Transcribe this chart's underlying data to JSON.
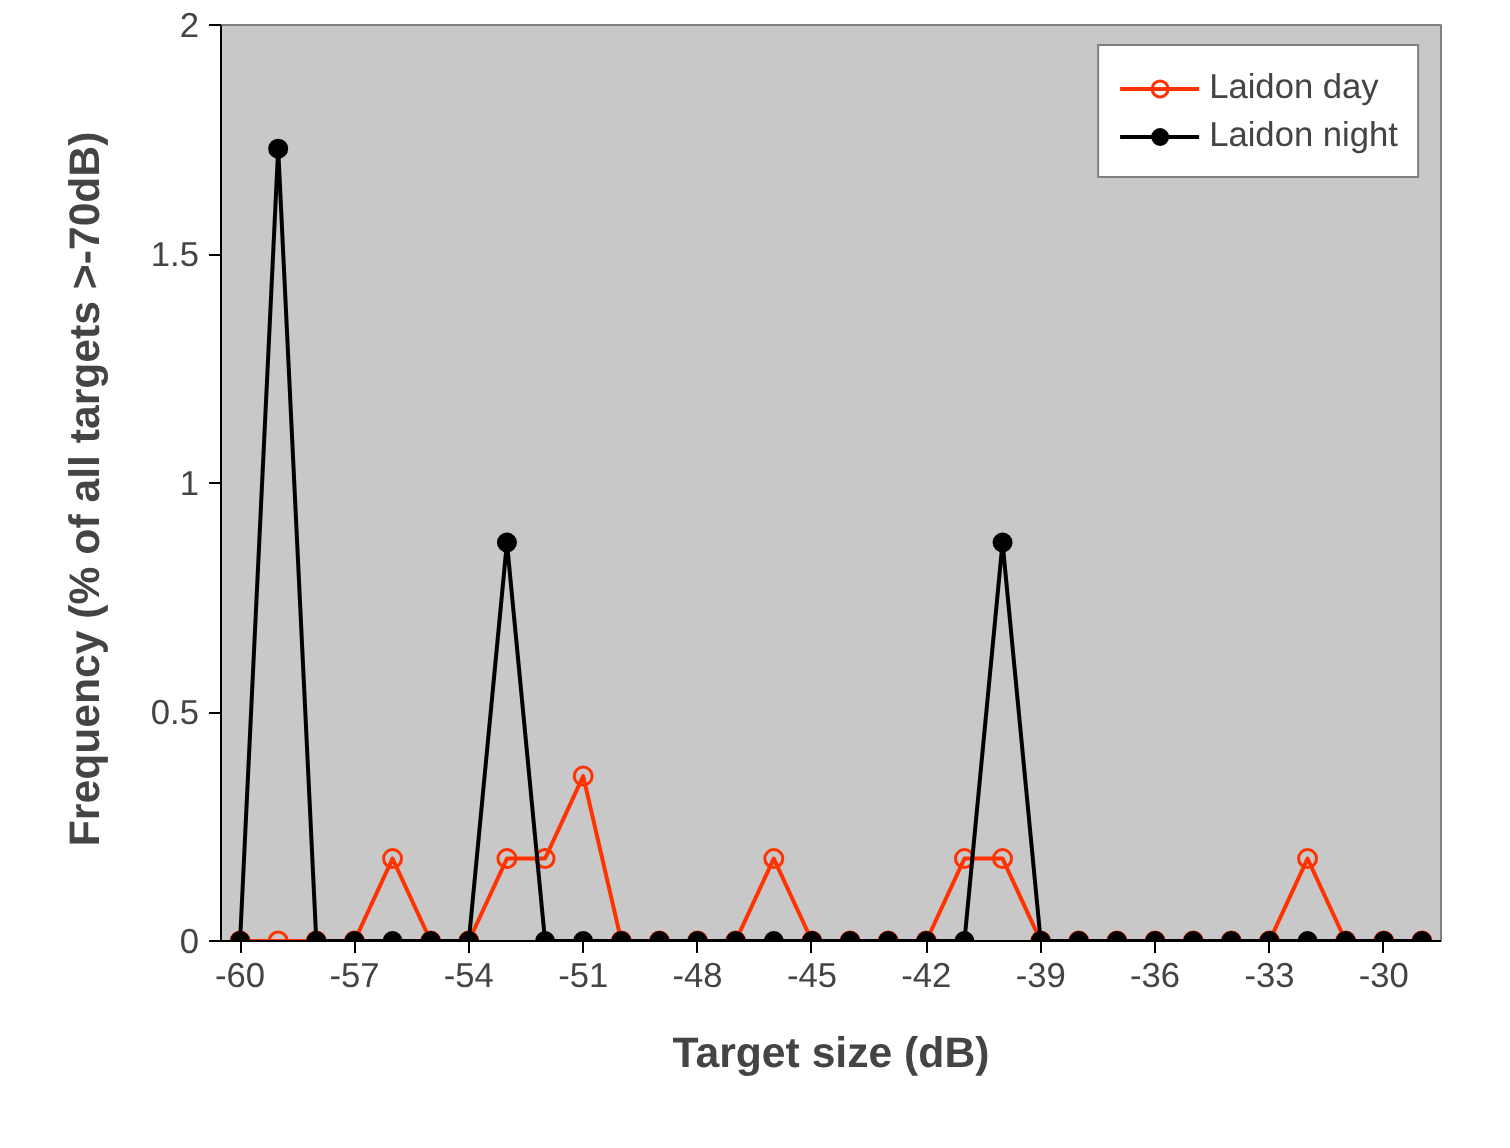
{
  "chart_data": {
    "type": "line",
    "xlabel": "Target size (dB)",
    "ylabel": "Frequency (%  of all targets >-70dB)",
    "x": [
      -60,
      -59,
      -58,
      -57,
      -56,
      -55,
      -54,
      -53,
      -52,
      -51,
      -50,
      -49,
      -48,
      -47,
      -46,
      -45,
      -44,
      -43,
      -42,
      -41,
      -40,
      -39,
      -38,
      -37,
      -36,
      -35,
      -34,
      -33,
      -32,
      -31,
      -30,
      -29
    ],
    "series": [
      {
        "name": "Laidon day",
        "color": "#ff3300",
        "marker": "circle_open",
        "values": [
          0,
          0,
          0,
          0,
          0.18,
          0,
          0,
          0.18,
          0.18,
          0.36,
          0,
          0,
          0,
          0,
          0.18,
          0,
          0,
          0,
          0,
          0.18,
          0.18,
          0,
          0,
          0,
          0,
          0,
          0,
          0,
          0.18,
          0,
          0,
          0
        ]
      },
      {
        "name": "Laidon night",
        "color": "#000000",
        "marker": "circle",
        "values": [
          0,
          1.73,
          0,
          0,
          0,
          0,
          0,
          0.87,
          0,
          0,
          0,
          0,
          0,
          0,
          0,
          0,
          0,
          0,
          0,
          0,
          0.87,
          0,
          0,
          0,
          0,
          0,
          0,
          0,
          0,
          0,
          0,
          0
        ]
      }
    ],
    "xlim": [
      -60.5,
      -28.5
    ],
    "xticks": [
      -60,
      -57,
      -54,
      -51,
      -48,
      -45,
      -42,
      -39,
      -36,
      -33,
      -30
    ],
    "ylim": [
      0,
      2
    ],
    "yticks": [
      0,
      0.5,
      1,
      1.5,
      2
    ],
    "grid": false,
    "legend": "top right",
    "line_style": "solid"
  }
}
